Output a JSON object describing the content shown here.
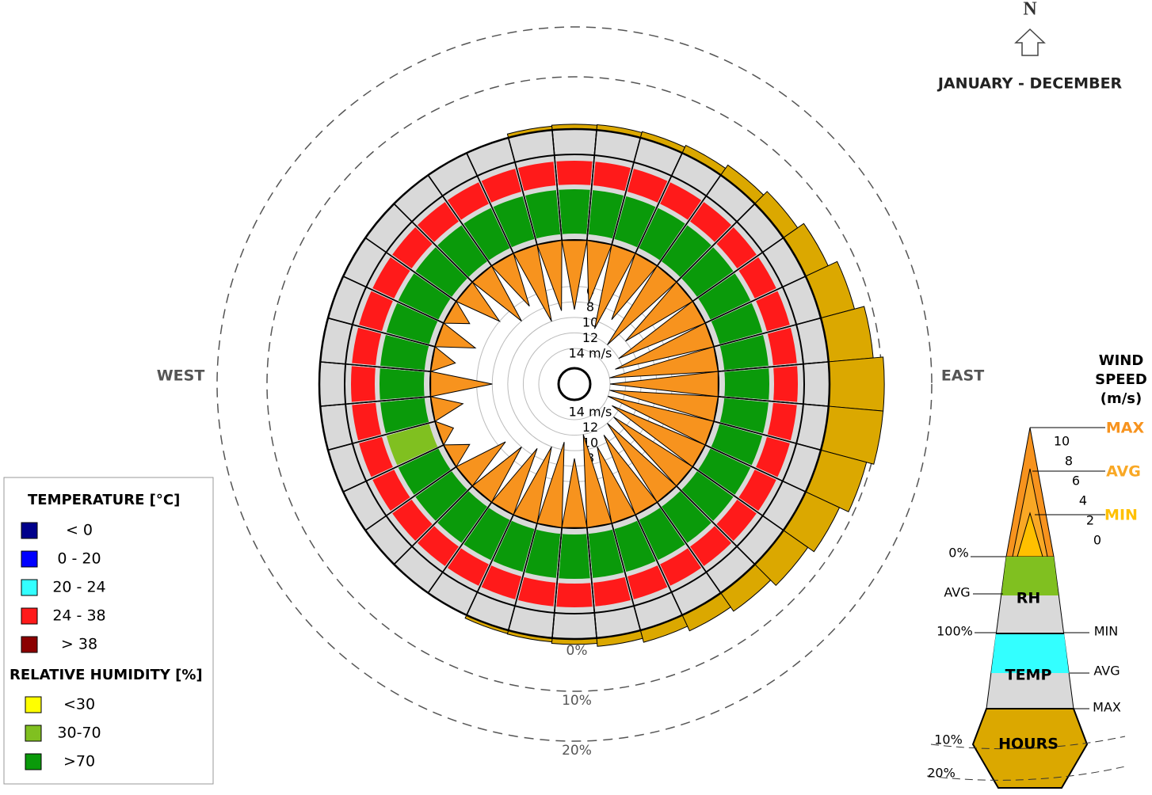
{
  "chart_data": {
    "type": "windrose",
    "title": "JANUARY - DECEMBER",
    "north_label": "N",
    "west_label": "WEST",
    "east_label": "EAST",
    "directions": [
      0,
      10,
      20,
      30,
      40,
      50,
      60,
      70,
      80,
      90,
      100,
      110,
      120,
      130,
      140,
      150,
      160,
      170,
      180,
      190,
      200,
      210,
      220,
      230,
      240,
      250,
      260,
      270,
      280,
      290,
      300,
      310,
      320,
      330,
      340,
      350
    ],
    "hours": [
      0.5,
      0.6,
      0.8,
      1.2,
      2,
      3,
      4.5,
      6.5,
      8.5,
      10.5,
      10.5,
      9,
      7,
      5.5,
      4,
      3,
      2,
      1.2,
      0.6,
      0.3,
      0.2,
      0,
      0,
      0,
      0,
      0,
      0,
      0,
      0,
      0,
      0,
      0,
      0,
      0,
      0,
      0.3
    ],
    "hours_color": "#dba800",
    "hours_lim": [
      0,
      20
    ],
    "hours_ticks": [
      {
        "value": 0,
        "label": "0%"
      },
      {
        "value": 10,
        "label": "10%"
      },
      {
        "value": 20,
        "label": "20%"
      }
    ],
    "max_speed": [
      9,
      8,
      11,
      9,
      12,
      10,
      12,
      13,
      14,
      14,
      14,
      14,
      13,
      12,
      12,
      11,
      10,
      12,
      9,
      11,
      10,
      9,
      8,
      7,
      3,
      2,
      4,
      8,
      3,
      5,
      3,
      6,
      8,
      7,
      10,
      9
    ],
    "max_speed_color": "#f7931e",
    "speed_lim": [
      0,
      14
    ],
    "speed_ticks": [
      {
        "value": 14,
        "label": "14 m/s"
      },
      12,
      10,
      8,
      6
    ],
    "temp_colors": [
      "#ff1a1a",
      "#ff1a1a",
      "#ff1a1a",
      "#ff1a1a",
      "#ff1a1a",
      "#ff1a1a",
      "#ff1a1a",
      "#ff1a1a",
      "#ff1a1a",
      "#ff1a1a",
      "#ff1a1a",
      "#ff1a1a",
      "#ff1a1a",
      "#ff1a1a",
      "#ff1a1a",
      "#ff1a1a",
      "#ff1a1a",
      "#ff1a1a",
      "#ff1a1a",
      "#ff1a1a",
      "#ff1a1a",
      "#ff1a1a",
      "#ff1a1a",
      "#ff1a1a",
      "#ff1a1a",
      "#ff1a1a",
      "#ff1a1a",
      "#ff1a1a",
      "#ff1a1a",
      "#ff1a1a",
      "#ff1a1a",
      "#ff1a1a",
      "#ff1a1a",
      "#ff1a1a",
      "#ff1a1a",
      "#ff1a1a"
    ],
    "rh_colors": [
      "#0a9a0a",
      "#0a9a0a",
      "#0a9a0a",
      "#0a9a0a",
      "#0a9a0a",
      "#0a9a0a",
      "#0a9a0a",
      "#0a9a0a",
      "#0a9a0a",
      "#0a9a0a",
      "#0a9a0a",
      "#0a9a0a",
      "#0a9a0a",
      "#0a9a0a",
      "#0a9a0a",
      "#0a9a0a",
      "#0a9a0a",
      "#0a9a0a",
      "#0a9a0a",
      "#0a9a0a",
      "#0a9a0a",
      "#0a9a0a",
      "#0a9a0a",
      "#0a9a0a",
      "#0a9a0a",
      "#80c020",
      "#0a9a0a",
      "#0a9a0a",
      "#0a9a0a",
      "#0a9a0a",
      "#0a9a0a",
      "#0a9a0a",
      "#0a9a0a",
      "#0a9a0a",
      "#0a9a0a",
      "#0a9a0a"
    ],
    "legend": {
      "temperature_title": "TEMPERATURE [°C]",
      "temperature_items": [
        {
          "label": "< 0",
          "color": "#00008b"
        },
        {
          "label": "0  -  20",
          "color": "#0000ff"
        },
        {
          "label": "20  -  24",
          "color": "#33ffff"
        },
        {
          "label": "24  -  38",
          "color": "#ff1a1a"
        },
        {
          "label": "> 38",
          "color": "#8b0000"
        }
      ],
      "humidity_title": "RELATIVE HUMIDITY [%]",
      "humidity_items": [
        {
          "label": "<30",
          "color": "#ffff00"
        },
        {
          "label": "30-70",
          "color": "#80c020"
        },
        {
          "label": ">70",
          "color": "#0a9a0a"
        }
      ]
    },
    "key": {
      "title_lines": [
        "WIND",
        "SPEED",
        "(m/s)"
      ],
      "max": "MAX",
      "avg": "AVG",
      "min": "MIN",
      "speed_ticks": [
        10,
        8,
        6,
        4,
        2,
        0
      ],
      "rh_top": "0%",
      "rh_avg": "AVG",
      "rh_label": "RH",
      "rh_bottom": "100%",
      "rh_min": "MIN",
      "temp_label": "TEMP",
      "temp_avg": "AVG",
      "temp_max": "MAX",
      "hours_label": "HOURS",
      "hours_10": "10%",
      "hours_20": "20%"
    }
  }
}
